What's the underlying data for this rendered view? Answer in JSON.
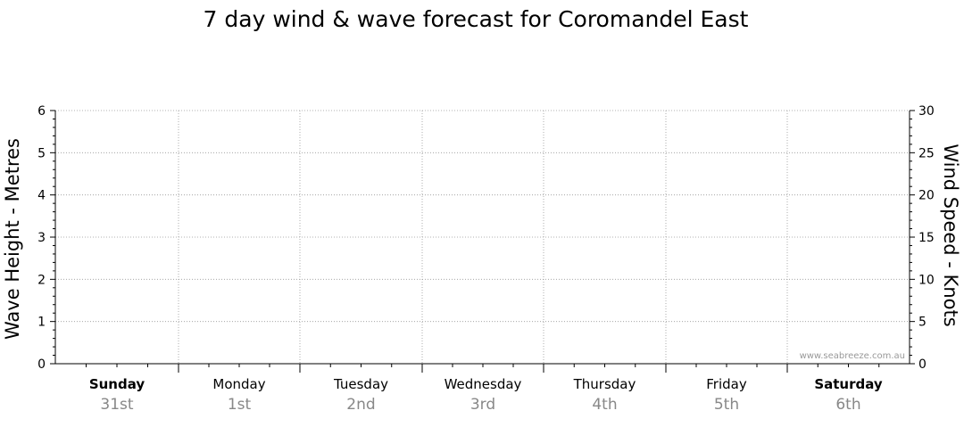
{
  "chart_data": {
    "type": "line",
    "title": "7 day wind & wave forecast for Coromandel East",
    "left_axis": {
      "label": "Wave Height - Metres",
      "ylim": [
        0,
        6
      ],
      "ticks": [
        "0",
        "1",
        "2",
        "3",
        "4",
        "5",
        "6"
      ]
    },
    "right_axis": {
      "label": "Wind Speed - Knots",
      "ylim": [
        0,
        30
      ],
      "ticks": [
        "0",
        "5",
        "10",
        "15",
        "20",
        "25",
        "30"
      ]
    },
    "days": [
      {
        "name": "Sunday",
        "date": "31st",
        "bold": true
      },
      {
        "name": "Monday",
        "date": "1st",
        "bold": false
      },
      {
        "name": "Tuesday",
        "date": "2nd",
        "bold": false
      },
      {
        "name": "Wednesday",
        "date": "3rd",
        "bold": false
      },
      {
        "name": "Thursday",
        "date": "4th",
        "bold": false
      },
      {
        "name": "Friday",
        "date": "5th",
        "bold": false
      },
      {
        "name": "Saturday",
        "date": "6th",
        "bold": true
      }
    ],
    "grid": true,
    "series": [],
    "watermark": "www.seabreeze.com.au"
  },
  "colors": {
    "grid": "#999999",
    "axis": "#000000",
    "date_text": "#888888",
    "watermark": "#999999"
  }
}
